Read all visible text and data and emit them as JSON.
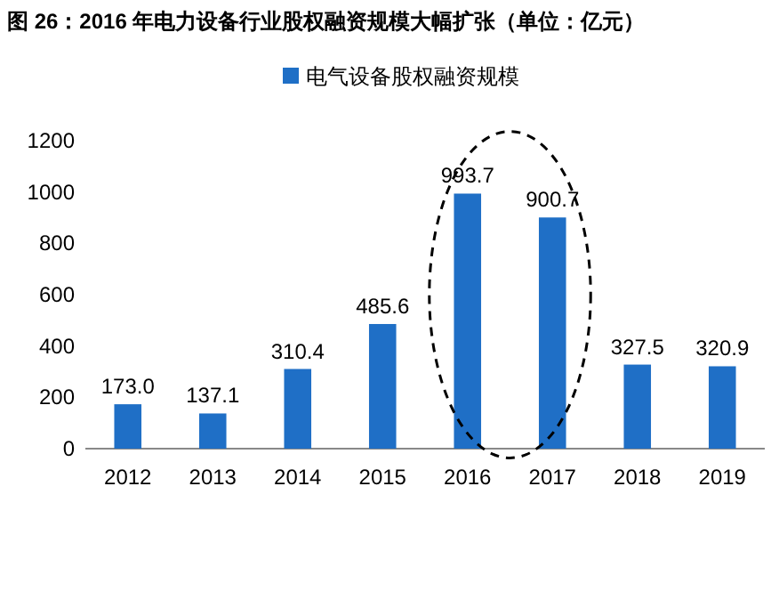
{
  "chart_data": {
    "type": "bar",
    "title": "图 26：2016 年电力设备行业股权融资规模大幅扩张（单位：亿元）",
    "categories": [
      "2012",
      "2013",
      "2014",
      "2015",
      "2016",
      "2017",
      "2018",
      "2019"
    ],
    "series": [
      {
        "name": "电气设备股权融资规模",
        "color": "#1f6fc6",
        "values": [
          173.0,
          137.1,
          310.4,
          485.6,
          993.7,
          900.7,
          327.5,
          320.9
        ],
        "value_labels": [
          "173.0",
          "137.1",
          "310.4",
          "485.6",
          "993.7",
          "900.7",
          "327.5",
          "320.9"
        ]
      }
    ],
    "ylim": [
      0,
      1200
    ],
    "yticks": [
      0,
      200,
      400,
      600,
      800,
      1000,
      1200
    ],
    "grid": false,
    "legend": "top"
  }
}
